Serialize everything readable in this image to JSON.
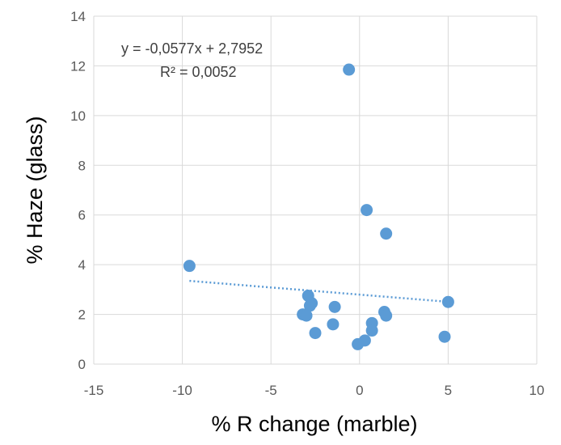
{
  "chart_data": {
    "type": "scatter",
    "xlabel": "% R change (marble)",
    "ylabel": "% Haze (glass)",
    "xlim": [
      -15,
      10
    ],
    "ylim": [
      0,
      14
    ],
    "x_ticks": [
      "-15",
      "-10",
      "-5",
      "0",
      "5",
      "10"
    ],
    "y_ticks": [
      "0",
      "2",
      "4",
      "6",
      "8",
      "10",
      "12",
      "14"
    ],
    "grid": true,
    "point_color": "#5b9bd5",
    "trendline": {
      "type": "linear",
      "slope": -0.0577,
      "intercept": 2.7952,
      "x_range": [
        -9.6,
        5.0
      ],
      "style": "dotted",
      "color": "#5b9bd5",
      "equation": "y = -0,0577x + 2,7952",
      "r_squared": "R² = 0,0052"
    },
    "points": [
      {
        "x": -0.6,
        "y": 11.85
      },
      {
        "x": 0.4,
        "y": 6.2
      },
      {
        "x": 1.5,
        "y": 5.25
      },
      {
        "x": -9.6,
        "y": 3.95
      },
      {
        "x": -2.9,
        "y": 2.75
      },
      {
        "x": -2.7,
        "y": 2.45
      },
      {
        "x": -2.8,
        "y": 2.35
      },
      {
        "x": -1.4,
        "y": 2.3
      },
      {
        "x": -3.2,
        "y": 2.0
      },
      {
        "x": -3.0,
        "y": 1.95
      },
      {
        "x": 1.4,
        "y": 2.1
      },
      {
        "x": 1.5,
        "y": 1.95
      },
      {
        "x": 5.0,
        "y": 2.5
      },
      {
        "x": 0.7,
        "y": 1.65
      },
      {
        "x": 0.7,
        "y": 1.35
      },
      {
        "x": -1.5,
        "y": 1.6
      },
      {
        "x": -2.5,
        "y": 1.25
      },
      {
        "x": 4.8,
        "y": 1.1
      },
      {
        "x": 0.3,
        "y": 0.95
      },
      {
        "x": -0.1,
        "y": 0.8
      }
    ]
  }
}
